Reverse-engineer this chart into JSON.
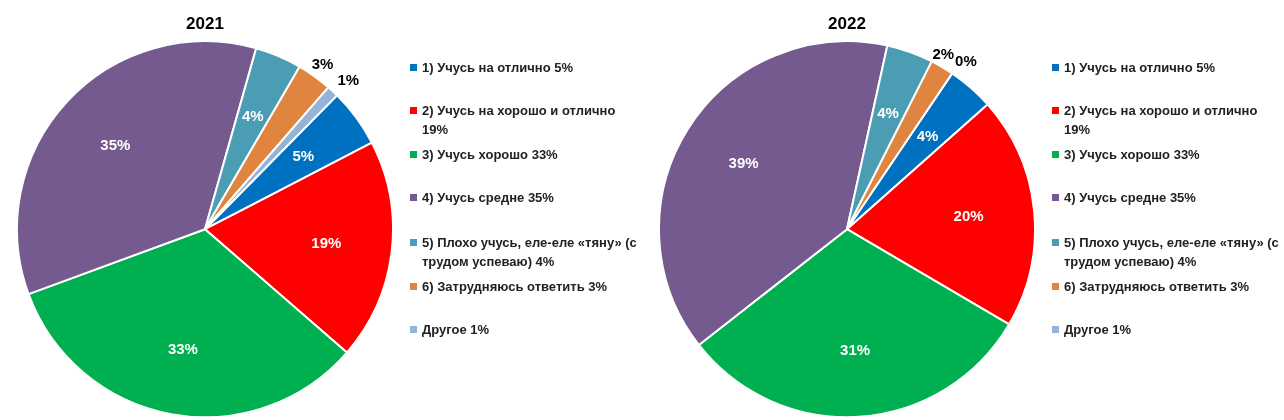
{
  "chart_data": [
    {
      "type": "pie",
      "title": "2021",
      "legend": "right",
      "categories": [
        "1) Учусь на отлично 5%",
        "2) Учусь на хорошо и отлично 19%",
        "3) Учусь хорошо 33%",
        "4) Учусь средне 35%",
        "5) Плохо учусь, еле-еле «тяну» (с трудом успеваю) 4%",
        "6) Затрудняюсь ответить 3%",
        "Другое 1%"
      ],
      "values": [
        5,
        19,
        33,
        35,
        4,
        3,
        1
      ],
      "value_labels": [
        "5%",
        "19%",
        "33%",
        "35%",
        "4%",
        "3%",
        "1%"
      ],
      "colors": [
        "#0070c0",
        "#ff0000",
        "#00b050",
        "#745a8e",
        "#4a9db3",
        "#e0853f",
        "#95b3d7"
      ]
    },
    {
      "type": "pie",
      "title": "2022",
      "legend": "right",
      "categories": [
        "1) Учусь на отлично 5%",
        "2) Учусь на хорошо и отлично 19%",
        "3) Учусь хорошо 33%",
        "4) Учусь средне 35%",
        "5) Плохо учусь, еле-еле «тяну» (с трудом успеваю) 4%",
        "6) Затрудняюсь ответить 3%",
        "Другое 1%"
      ],
      "values": [
        4,
        20,
        31,
        39,
        4,
        2,
        0
      ],
      "value_labels": [
        "4%",
        "20%",
        "31%",
        "39%",
        "4%",
        "2%",
        "0%"
      ],
      "colors": [
        "#0070c0",
        "#ff0000",
        "#00b050",
        "#745a8e",
        "#4a9db3",
        "#e0853f",
        "#95b3d7"
      ]
    }
  ]
}
